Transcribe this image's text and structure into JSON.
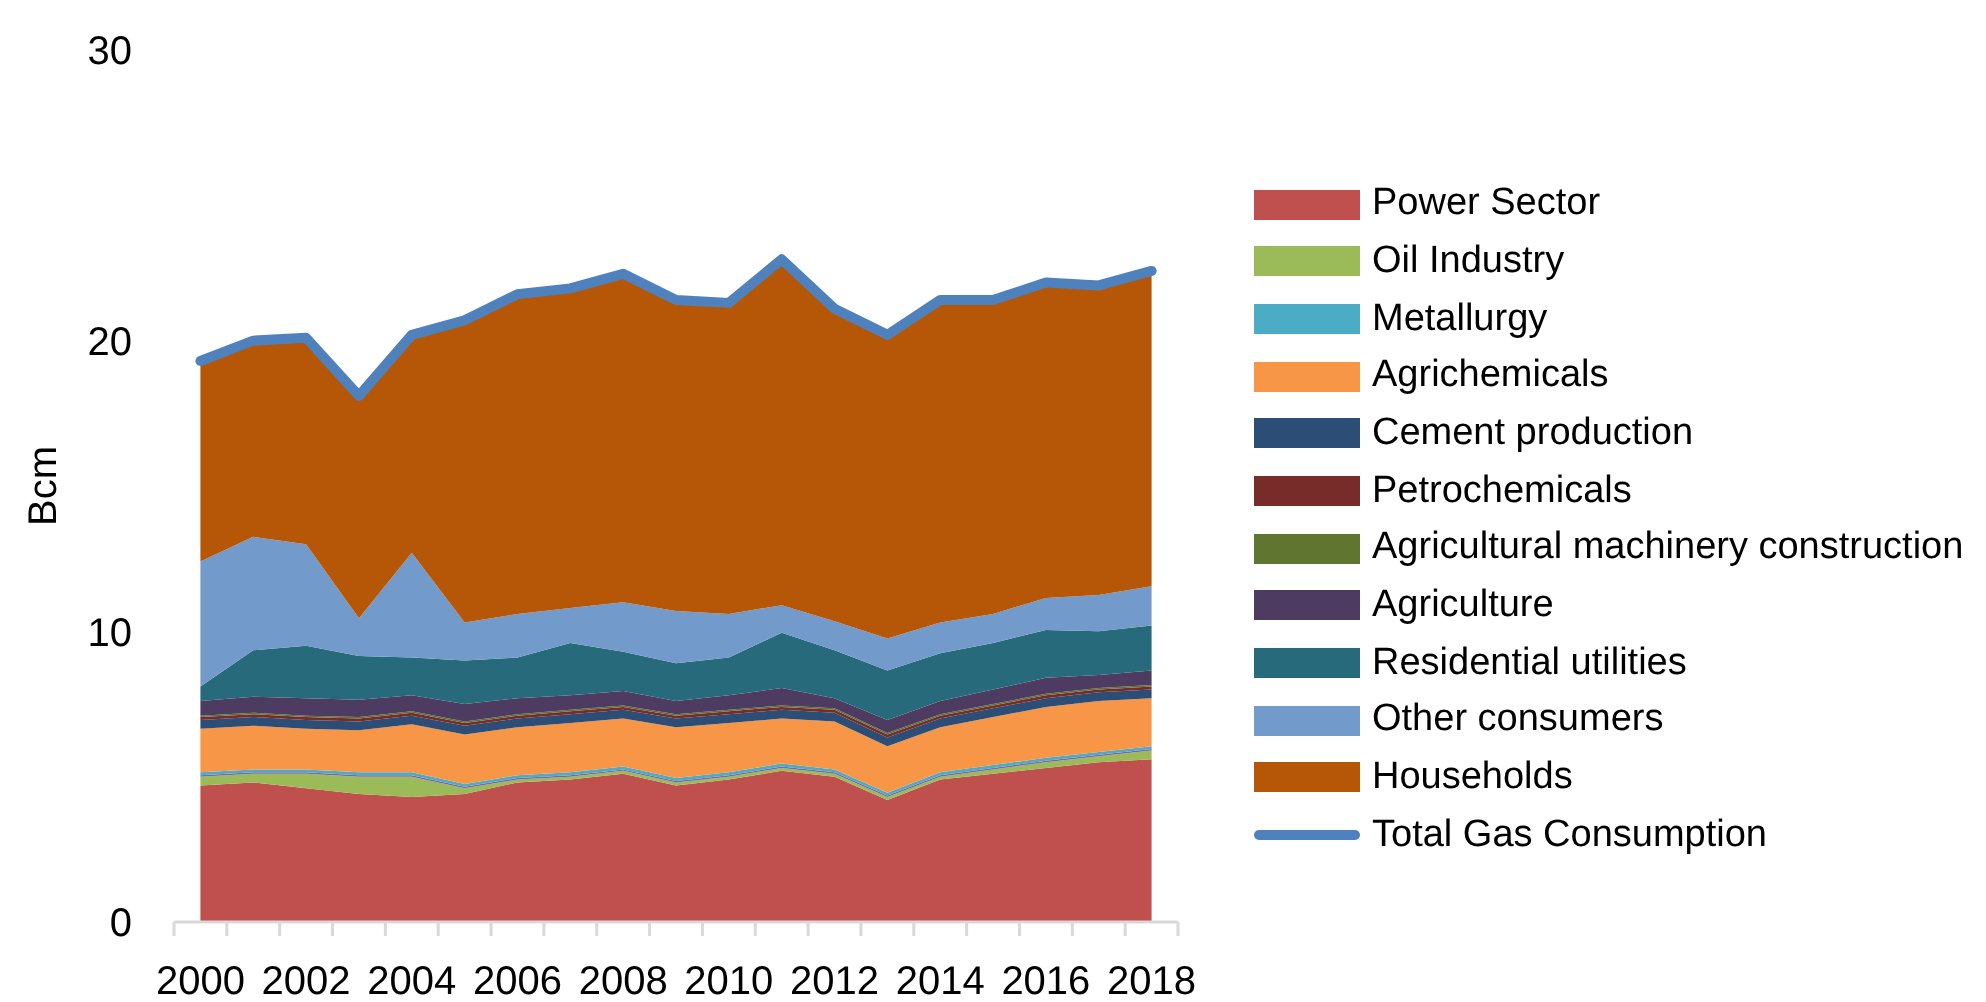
{
  "chart_data": {
    "type": "area",
    "stacked": true,
    "ylabel": "Bcm",
    "legend": "right",
    "x": [
      2000,
      2001,
      2002,
      2003,
      2004,
      2005,
      2006,
      2007,
      2008,
      2009,
      2010,
      2011,
      2012,
      2013,
      2014,
      2015,
      2016,
      2017,
      2018
    ],
    "xlim": [
      1999.5,
      2018.5
    ],
    "xticks": [
      {
        "value": 1999.5,
        "label": null
      },
      2000,
      {
        "value": 2000.5,
        "label": null
      },
      {
        "value": 2001.5,
        "label": null
      },
      2002,
      {
        "value": 2002.5,
        "label": null
      },
      {
        "value": 2003.5,
        "label": null
      },
      2004,
      {
        "value": 2004.5,
        "label": null
      },
      {
        "value": 2005.5,
        "label": null
      },
      2006,
      {
        "value": 2006.5,
        "label": null
      },
      {
        "value": 2007.5,
        "label": null
      },
      2008,
      {
        "value": 2008.5,
        "label": null
      },
      {
        "value": 2009.5,
        "label": null
      },
      2010,
      {
        "value": 2010.5,
        "label": null
      },
      {
        "value": 2011.5,
        "label": null
      },
      2012,
      {
        "value": 2012.5,
        "label": null
      },
      {
        "value": 2013.5,
        "label": null
      },
      2014,
      {
        "value": 2014.5,
        "label": null
      },
      {
        "value": 2015.5,
        "label": null
      },
      2016,
      {
        "value": 2016.5,
        "label": null
      },
      {
        "value": 2017.5,
        "label": null
      },
      2018,
      {
        "value": 2018.5,
        "label": null
      }
    ],
    "ylim": [
      0,
      30
    ],
    "yticks": [
      0,
      10,
      20,
      30
    ],
    "series": [
      {
        "name": "Power Sector",
        "color": "#c0504d",
        "values": [
          4.7,
          4.8,
          4.6,
          4.4,
          4.3,
          4.4,
          4.8,
          4.9,
          5.1,
          4.7,
          4.9,
          5.2,
          5.0,
          4.2,
          4.9,
          5.1,
          5.3,
          5.5,
          5.6
        ]
      },
      {
        "name": "Oil Industry",
        "color": "#9bbb59",
        "values": [
          0.3,
          0.3,
          0.5,
          0.6,
          0.7,
          0.2,
          0.1,
          0.1,
          0.1,
          0.1,
          0.1,
          0.1,
          0.1,
          0.1,
          0.1,
          0.15,
          0.2,
          0.2,
          0.3
        ]
      },
      {
        "color": "#8064a2",
        "values": [
          0.05,
          0.05,
          0.05,
          0.05,
          0.05,
          0.05,
          0.05,
          0.05,
          0.05,
          0.05,
          0.05,
          0.05,
          0.05,
          0.05,
          0.05,
          0.05,
          0.05,
          0.05,
          0.05
        ]
      },
      {
        "name": "Metallurgy",
        "color": "#4bacc6",
        "values": [
          0.1,
          0.1,
          0.1,
          0.1,
          0.1,
          0.1,
          0.1,
          0.1,
          0.1,
          0.1,
          0.1,
          0.1,
          0.1,
          0.1,
          0.1,
          0.1,
          0.1,
          0.1,
          0.1
        ]
      },
      {
        "name": "Agrichemicals",
        "color": "#f79646",
        "values": [
          1.5,
          1.5,
          1.4,
          1.45,
          1.65,
          1.7,
          1.65,
          1.7,
          1.65,
          1.75,
          1.7,
          1.55,
          1.65,
          1.6,
          1.55,
          1.65,
          1.75,
          1.75,
          1.65
        ]
      },
      {
        "name": "Cement production",
        "color": "#2c4d75",
        "values": [
          0.3,
          0.3,
          0.3,
          0.3,
          0.3,
          0.3,
          0.3,
          0.3,
          0.3,
          0.3,
          0.3,
          0.3,
          0.3,
          0.3,
          0.3,
          0.3,
          0.3,
          0.3,
          0.3
        ]
      },
      {
        "name": "Petrochemicals",
        "color": "#772c2a",
        "values": [
          0.1,
          0.1,
          0.1,
          0.1,
          0.1,
          0.1,
          0.1,
          0.1,
          0.1,
          0.1,
          0.1,
          0.1,
          0.1,
          0.1,
          0.1,
          0.1,
          0.1,
          0.1,
          0.1
        ]
      },
      {
        "name": "Agricultural machinery construction",
        "color": "#5f7530",
        "values": [
          0.05,
          0.05,
          0.05,
          0.05,
          0.05,
          0.05,
          0.05,
          0.05,
          0.05,
          0.05,
          0.05,
          0.05,
          0.05,
          0.05,
          0.05,
          0.05,
          0.05,
          0.05,
          0.05
        ]
      },
      {
        "name": "Agriculture",
        "color": "#4d3b62",
        "values": [
          0.5,
          0.55,
          0.6,
          0.6,
          0.55,
          0.6,
          0.55,
          0.5,
          0.5,
          0.45,
          0.5,
          0.6,
          0.35,
          0.45,
          0.45,
          0.5,
          0.55,
          0.45,
          0.5
        ]
      },
      {
        "name": "Residential utilities",
        "color": "#276a7c",
        "values": [
          0.5,
          1.6,
          1.8,
          1.5,
          1.3,
          1.5,
          1.4,
          1.8,
          1.35,
          1.3,
          1.3,
          1.9,
          1.65,
          1.7,
          1.65,
          1.6,
          1.65,
          1.5,
          1.55
        ]
      },
      {
        "name": "Other consumers",
        "color": "#729aca",
        "values": [
          4.3,
          3.9,
          3.5,
          1.3,
          3.6,
          1.3,
          1.5,
          1.2,
          1.7,
          1.8,
          1.5,
          0.95,
          1.0,
          1.1,
          1.05,
          1.0,
          1.1,
          1.25,
          1.35
        ]
      },
      {
        "name": "Households",
        "color": "#b65708",
        "values": [
          6.9,
          6.75,
          7.1,
          7.65,
          7.5,
          10.4,
          11.0,
          11.0,
          11.3,
          10.7,
          10.7,
          11.9,
          10.75,
          10.45,
          11.1,
          10.8,
          10.85,
          10.65,
          10.85
        ]
      },
      {
        "name": "Total Gas Consumption",
        "type": "line",
        "color": "#4f81bd",
        "values": [
          19.3,
          20.0,
          20.1,
          18.1,
          20.2,
          20.7,
          21.6,
          21.8,
          22.3,
          21.4,
          21.3,
          22.8,
          21.1,
          20.2,
          21.4,
          21.4,
          22.0,
          21.9,
          22.4
        ]
      }
    ]
  }
}
